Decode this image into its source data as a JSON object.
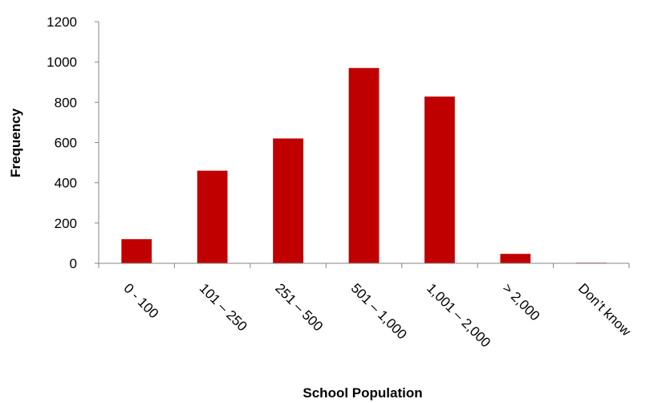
{
  "chart_data": {
    "type": "bar",
    "title": "",
    "xlabel": "School Population",
    "ylabel": "Frequency",
    "categories": [
      "0 - 100",
      "101 – 250",
      "251 – 500",
      "501 – 1,000",
      "1,001 – 2,000",
      "> 2,000",
      "Don’t know"
    ],
    "values": [
      120,
      460,
      620,
      970,
      828,
      47,
      3
    ],
    "ylim": [
      0,
      1200
    ],
    "yticks": [
      0,
      200,
      400,
      600,
      800,
      1000,
      1200
    ],
    "bar_color": "#C00000",
    "grid": false,
    "legend": "none"
  }
}
